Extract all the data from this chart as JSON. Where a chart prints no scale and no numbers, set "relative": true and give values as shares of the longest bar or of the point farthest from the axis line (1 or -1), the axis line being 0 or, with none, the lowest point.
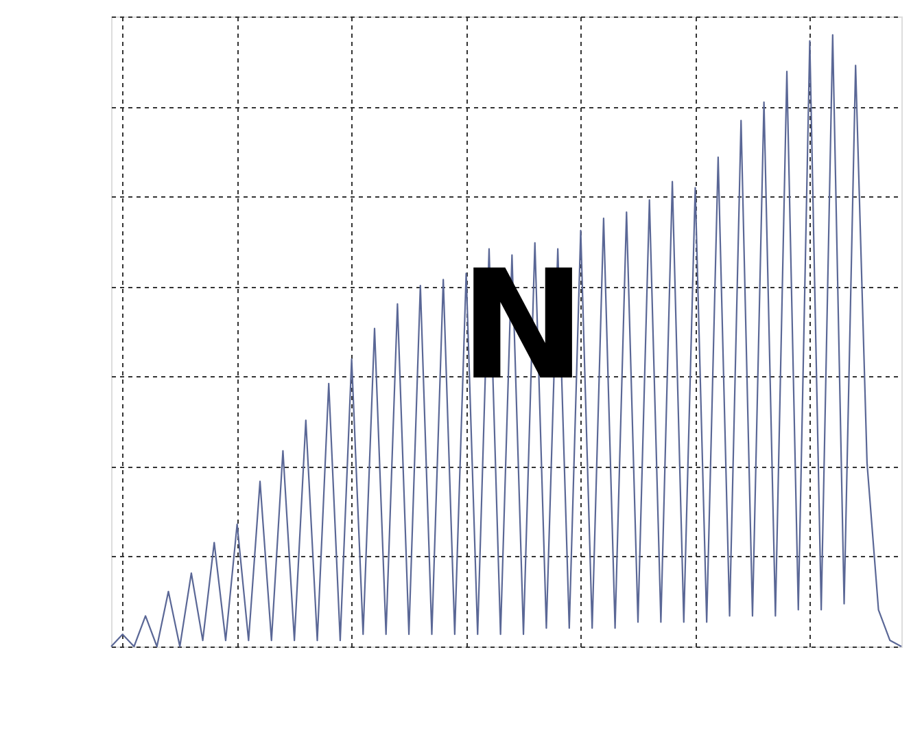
{
  "chart_data": {
    "type": "line",
    "relative": true,
    "grid": true,
    "tick_labels": false,
    "marker": "none",
    "line_style": "solid",
    "annotations": [
      "N"
    ],
    "categories": [
      null,
      null,
      null,
      null,
      null,
      null,
      null,
      null,
      null,
      null,
      null,
      null,
      null,
      null,
      null,
      null,
      null,
      null,
      null,
      null,
      null,
      null,
      null,
      null,
      null,
      null,
      null,
      null,
      null,
      null,
      null,
      null,
      null,
      null,
      null,
      null,
      null,
      null,
      null,
      null,
      null,
      null,
      null,
      null,
      null,
      null,
      null,
      null,
      null,
      null,
      null,
      null,
      null,
      null,
      null,
      null,
      null,
      null,
      null,
      null,
      null,
      null,
      null,
      null,
      null,
      null,
      null,
      null,
      null,
      null
    ],
    "series": [
      {
        "color": "#5a6796",
        "values": [
          0,
          0.02,
          0.0,
          0.05,
          0.0,
          0.09,
          0.0,
          0.12,
          0.01,
          0.17,
          0.01,
          0.2,
          0.01,
          0.27,
          0.01,
          0.32,
          0.01,
          0.37,
          0.01,
          0.43,
          0.01,
          0.47,
          0.02,
          0.52,
          0.02,
          0.56,
          0.02,
          0.59,
          0.02,
          0.6,
          0.02,
          0.61,
          0.02,
          0.65,
          0.02,
          0.64,
          0.02,
          0.66,
          0.03,
          0.65,
          0.03,
          0.68,
          0.03,
          0.7,
          0.03,
          0.71,
          0.04,
          0.73,
          0.04,
          0.76,
          0.04,
          0.75,
          0.04,
          0.8,
          0.05,
          0.86,
          0.05,
          0.89,
          0.05,
          0.94,
          0.06,
          0.99,
          0.06,
          1.0,
          0.07,
          0.95,
          0.3,
          0.06,
          0.01,
          0.0
        ]
      }
    ]
  }
}
